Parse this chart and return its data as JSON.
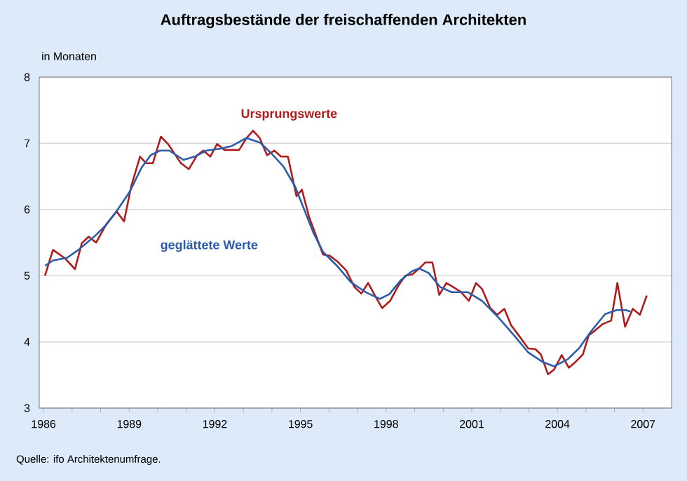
{
  "chart_data": {
    "type": "line",
    "title": "Auftragsbestände der freischaffenden Architekten",
    "ylabel": "in Monaten",
    "annotations": [
      "Quelle: ifo Architektenumfrage."
    ],
    "series": [
      {
        "name": "Ursprungswerte",
        "color": "#b01c1c",
        "x": [
          1986.05,
          1986.33,
          1986.73,
          1987.1,
          1987.34,
          1987.58,
          1987.84,
          1988.2,
          1988.56,
          1988.82,
          1989.07,
          1989.38,
          1989.59,
          1989.83,
          1990.11,
          1990.36,
          1990.81,
          1991.09,
          1991.38,
          1991.6,
          1991.84,
          1992.08,
          1992.33,
          1992.61,
          1992.85,
          1993.11,
          1993.34,
          1993.57,
          1993.83,
          1994.08,
          1994.32,
          1994.56,
          1994.86,
          1995.05,
          1995.3,
          1995.79,
          1996.03,
          1996.28,
          1996.6,
          1996.89,
          1997.13,
          1997.37,
          1997.62,
          1997.86,
          1998.14,
          1998.43,
          1998.67,
          1998.92,
          1999.16,
          1999.37,
          1999.62,
          1999.86,
          2000.11,
          2000.38,
          2000.63,
          2000.9,
          2001.15,
          2001.36,
          2001.65,
          2001.89,
          2002.14,
          2002.38,
          2002.66,
          2002.98,
          2003.23,
          2003.42,
          2003.67,
          2003.88,
          2004.15,
          2004.4,
          2004.64,
          2004.89,
          2005.1,
          2005.34,
          2005.59,
          2005.88,
          2006.1,
          2006.37,
          2006.64,
          2006.89,
          2007.13
        ],
        "values": [
          5.0,
          5.39,
          5.27,
          5.1,
          5.49,
          5.59,
          5.5,
          5.78,
          5.97,
          5.82,
          6.35,
          6.8,
          6.7,
          6.7,
          7.1,
          6.99,
          6.7,
          6.61,
          6.82,
          6.89,
          6.8,
          6.99,
          6.9,
          6.9,
          6.9,
          7.08,
          7.19,
          7.08,
          6.82,
          6.89,
          6.8,
          6.8,
          6.2,
          6.3,
          5.89,
          5.32,
          5.3,
          5.22,
          5.08,
          4.83,
          4.73,
          4.89,
          4.69,
          4.51,
          4.62,
          4.85,
          5.0,
          5.02,
          5.11,
          5.2,
          5.2,
          4.71,
          4.89,
          4.82,
          4.75,
          4.62,
          4.89,
          4.8,
          4.51,
          4.41,
          4.5,
          4.25,
          4.09,
          3.9,
          3.89,
          3.81,
          3.51,
          3.58,
          3.8,
          3.61,
          3.7,
          3.81,
          4.1,
          4.18,
          4.27,
          4.32,
          4.89,
          4.23,
          4.5,
          4.41,
          4.7
        ]
      },
      {
        "name": "geglättete Werte",
        "color": "#2b5cab",
        "x": [
          1986.05,
          1986.33,
          1986.82,
          1987.22,
          1987.8,
          1988.2,
          1988.6,
          1989.02,
          1989.43,
          1989.75,
          1990.08,
          1990.4,
          1990.9,
          1991.3,
          1991.7,
          1992.2,
          1992.6,
          1993.1,
          1993.59,
          1994.0,
          1994.4,
          1994.81,
          1995.13,
          1995.46,
          1995.79,
          1996.28,
          1996.77,
          1997.29,
          1997.78,
          1998.11,
          1998.51,
          1998.92,
          1999.16,
          1999.49,
          1999.89,
          2000.3,
          2000.87,
          2001.36,
          2001.93,
          2002.5,
          2002.98,
          2003.47,
          2003.88,
          2004.37,
          2004.77,
          2005.18,
          2005.67,
          2006.07,
          2006.4,
          2006.56
        ],
        "values": [
          5.15,
          5.23,
          5.27,
          5.39,
          5.6,
          5.77,
          6.0,
          6.27,
          6.63,
          6.82,
          6.89,
          6.89,
          6.75,
          6.8,
          6.89,
          6.92,
          6.96,
          7.08,
          7.01,
          6.84,
          6.65,
          6.35,
          6.0,
          5.64,
          5.36,
          5.15,
          4.9,
          4.75,
          4.65,
          4.72,
          4.93,
          5.07,
          5.11,
          5.04,
          4.83,
          4.75,
          4.75,
          4.62,
          4.37,
          4.09,
          3.84,
          3.7,
          3.63,
          3.74,
          3.91,
          4.16,
          4.42,
          4.48,
          4.48,
          4.46
        ]
      }
    ],
    "xlim": [
      1985.85,
      2008.0
    ],
    "xticks": [
      1986,
      {
        "value": 1987,
        "label": null
      },
      {
        "value": 1988,
        "label": null
      },
      1989,
      {
        "value": 1990,
        "label": null
      },
      {
        "value": 1991,
        "label": null
      },
      1992,
      {
        "value": 1993,
        "label": null
      },
      {
        "value": 1994,
        "label": null
      },
      1995,
      {
        "value": 1996,
        "label": null
      },
      {
        "value": 1997,
        "label": null
      },
      1998,
      {
        "value": 1999,
        "label": null
      },
      {
        "value": 2000,
        "label": null
      },
      2001,
      {
        "value": 2002,
        "label": null
      },
      {
        "value": 2003,
        "label": null
      },
      2004,
      {
        "value": 2005,
        "label": null
      },
      {
        "value": 2006,
        "label": null
      },
      2007
    ],
    "ylim": [
      3,
      8
    ],
    "yticks": [
      3,
      4,
      5,
      6,
      7,
      8
    ],
    "grid": "y",
    "legend": false,
    "marker": "none",
    "line_style": "solid"
  }
}
